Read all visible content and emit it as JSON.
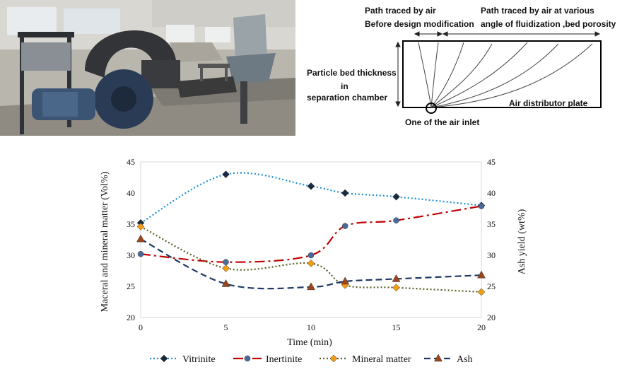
{
  "schematic": {
    "label_before_line1": "Path traced by air",
    "label_before_line2": "Before design modification",
    "label_various_line1": "Path traced by air at various",
    "label_various_line2": "angle of fluidization ,bed porosity",
    "bed_line1": "Particle bed thickness",
    "bed_line2": "in",
    "bed_line3": "separation chamber",
    "distributor": "Air distributor plate",
    "inlet": "One of the air inlet"
  },
  "chart_data": {
    "type": "line",
    "xlabel": "Time (min)",
    "ylabel": "Maceral and mineral matter (Vol%)",
    "ylabel_right": "Ash yield (wt%)",
    "xlim": [
      0,
      20
    ],
    "ylim": [
      20,
      45
    ],
    "ylim_right": [
      20,
      45
    ],
    "x_ticks": [
      "0",
      "5",
      "10",
      "15",
      "20"
    ],
    "y_ticks": [
      "20",
      "25",
      "30",
      "35",
      "40",
      "45"
    ],
    "legend_position": "bottom",
    "grid": false,
    "series": [
      {
        "name": "Vitrinite",
        "x": [
          0,
          5,
          10,
          12,
          15,
          20
        ],
        "values": [
          35.2,
          43.0,
          41.1,
          40.0,
          39.4,
          38.0
        ],
        "color": "#1e90d6",
        "dash": "2,3",
        "marker": "diamond",
        "marker_color": "#1a2a40",
        "axis": "left"
      },
      {
        "name": "Inertinite",
        "x": [
          0,
          5,
          10,
          12,
          15,
          20
        ],
        "values": [
          30.2,
          28.9,
          30.0,
          34.7,
          35.6,
          37.9
        ],
        "color": "#c00000",
        "dash": "14,5,3,5",
        "marker": "circle",
        "marker_color": "#4a6a9c",
        "axis": "left"
      },
      {
        "name": "Mineral matter",
        "x": [
          0,
          5,
          10,
          12,
          15,
          20
        ],
        "values": [
          34.6,
          27.9,
          28.7,
          25.2,
          24.8,
          24.1
        ],
        "color": "#5b5b1e",
        "dash": "2,3",
        "marker": "diamond",
        "marker_color": "#f39c12",
        "axis": "left"
      },
      {
        "name": "Ash",
        "x": [
          0,
          5,
          10,
          12,
          15,
          20
        ],
        "values": [
          32.6,
          25.4,
          24.9,
          25.8,
          26.2,
          26.8
        ],
        "color": "#1f3864",
        "dash": "9,5",
        "marker": "triangle",
        "marker_color": "#a0441c",
        "axis": "right"
      }
    ]
  }
}
